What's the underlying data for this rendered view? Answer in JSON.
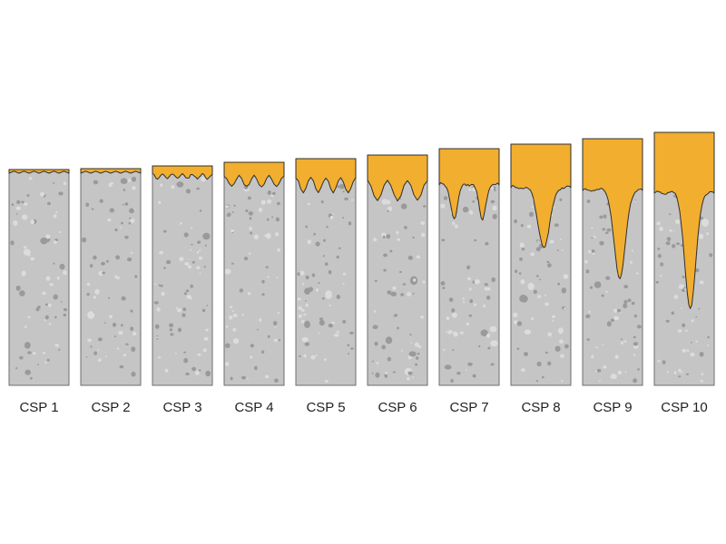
{
  "colors": {
    "background": "#ffffff",
    "concrete": "#c5c5c5",
    "concrete_outline": "#6e6e6e",
    "coating": "#f2ae2e",
    "coating_outline": "#2f2f2f",
    "aggregate_dark": "#9a9a9a",
    "aggregate_light": "#dcdcdc",
    "label": "#222222"
  },
  "profiles": [
    {
      "label": "CSP 1"
    },
    {
      "label": "CSP 2"
    },
    {
      "label": "CSP 3"
    },
    {
      "label": "CSP 4"
    },
    {
      "label": "CSP 5"
    },
    {
      "label": "CSP 6"
    },
    {
      "label": "CSP 7"
    },
    {
      "label": "CSP 8"
    },
    {
      "label": "CSP 9"
    },
    {
      "label": "CSP 10"
    }
  ]
}
